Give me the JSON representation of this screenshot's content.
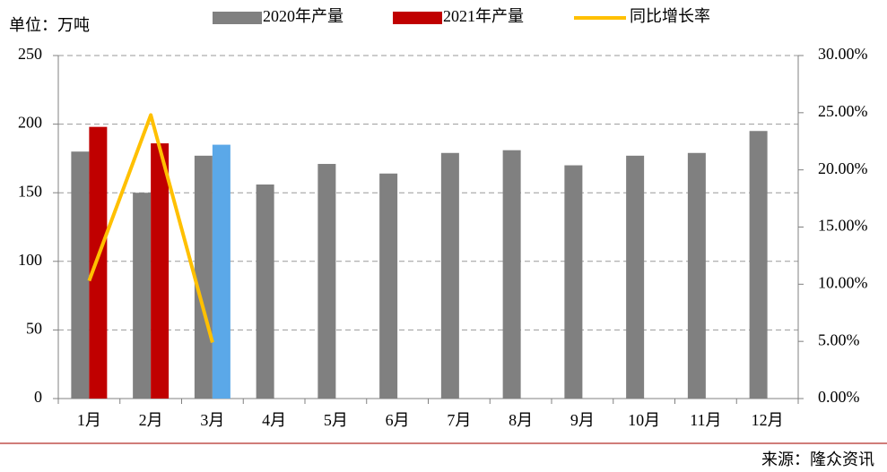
{
  "chart_data": {
    "type": "bar",
    "unit_label": "单位：万吨",
    "source": "来源：隆众资讯",
    "categories": [
      "1月",
      "2月",
      "3月",
      "4月",
      "5月",
      "6月",
      "7月",
      "8月",
      "9月",
      "10月",
      "11月",
      "12月"
    ],
    "series": [
      {
        "name": "2020年产量",
        "type": "bar",
        "color": "#808080",
        "values": [
          180,
          150,
          177,
          156,
          171,
          164,
          179,
          181,
          170,
          177,
          179,
          195
        ]
      },
      {
        "name": "2021年产量",
        "type": "bar",
        "color": "#c00000",
        "colors": [
          "#c00000",
          "#c00000",
          "#5ba8e8",
          null,
          null,
          null,
          null,
          null,
          null,
          null,
          null,
          null
        ],
        "values": [
          198,
          186,
          185,
          null,
          null,
          null,
          null,
          null,
          null,
          null,
          null,
          null
        ]
      },
      {
        "name": "同比增长率",
        "type": "line",
        "axis": "y2",
        "color": "#ffc000",
        "values": [
          10.3,
          24.8,
          4.9,
          null,
          null,
          null,
          null,
          null,
          null,
          null,
          null,
          null
        ]
      }
    ],
    "ylim": [
      0,
      250
    ],
    "yticks": [
      0,
      50,
      100,
      150,
      200,
      250
    ],
    "y2lim": [
      0,
      30
    ],
    "y2ticks": [
      {
        "value": 0,
        "label": "0.00%"
      },
      {
        "value": 5,
        "label": "5.00%"
      },
      {
        "value": 10,
        "label": "10.00%"
      },
      {
        "value": 15,
        "label": "15.00%"
      },
      {
        "value": 20,
        "label": "20.00%"
      },
      {
        "value": 25,
        "label": "25.00%"
      },
      {
        "value": 30,
        "label": "30.00%"
      }
    ],
    "grid": true
  }
}
